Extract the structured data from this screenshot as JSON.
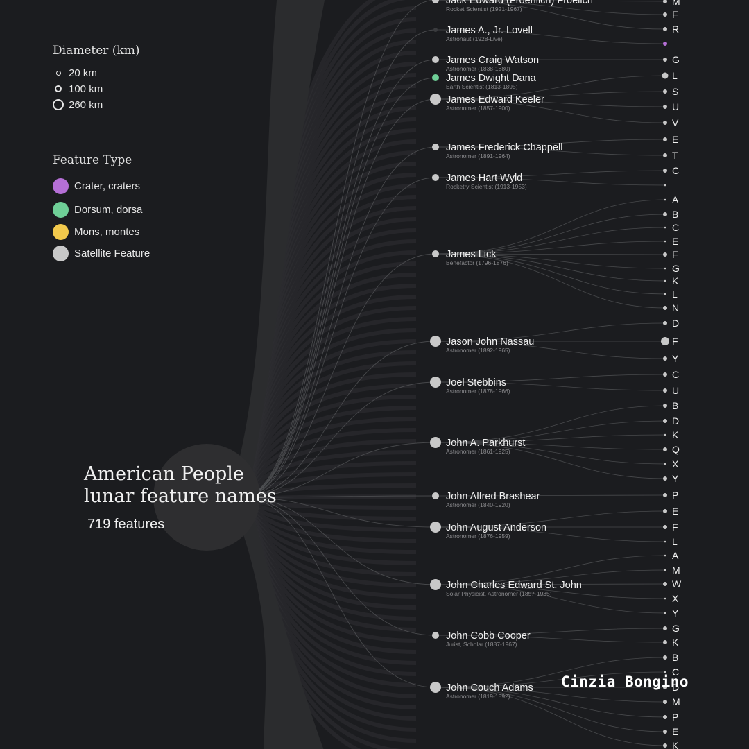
{
  "legend": {
    "diameter_title": "Diameter (km)",
    "diameter_items": [
      {
        "label": "20 km",
        "km": 20
      },
      {
        "label": "100 km",
        "km": 100
      },
      {
        "label": "260 km",
        "km": 260
      }
    ],
    "type_title": "Feature Type",
    "type_items": [
      {
        "label": "Crater, craters",
        "color": "#b56fd6"
      },
      {
        "label": "Dorsum, dorsa",
        "color": "#6fcf97"
      },
      {
        "label": "Mons, montes",
        "color": "#f2c94c"
      },
      {
        "label": "Satellite Feature",
        "color": "#c8c8c8"
      }
    ]
  },
  "center": {
    "title_line1": "American People",
    "title_line2": "lunar feature names",
    "count": "719 features"
  },
  "people": [
    {
      "name": "Jack Edward (Froehlich) Froelich",
      "role": "Rocket Scientist (1921-1967)",
      "type": "Satellite Feature",
      "node": "medium"
    },
    {
      "name": "James A., Jr. Lovell",
      "role": "Astronaut (1928-Live)",
      "type": "Satellite Feature",
      "node": "none"
    },
    {
      "name": "James Craig Watson",
      "role": "Astronomer (1838-1880)",
      "type": "Satellite Feature",
      "node": "medium"
    },
    {
      "name": "James Dwight Dana",
      "role": "Earth Scientist (1813-1895)",
      "type": "Dorsum, dorsa",
      "node": "medium"
    },
    {
      "name": "James Edward Keeler",
      "role": "Astronomer (1857-1900)",
      "type": "Satellite Feature",
      "node": "large"
    },
    {
      "name": "James Frederick Chappell",
      "role": "Astronomer (1891-1964)",
      "type": "Satellite Feature",
      "node": "medium"
    },
    {
      "name": "James Hart Wyld",
      "role": "Rocketry Scientist (1913-1953)",
      "type": "Satellite Feature",
      "node": "medium"
    },
    {
      "name": "James Lick",
      "role": "Benefactor (1796-1876)",
      "type": "Satellite Feature",
      "node": "medium"
    },
    {
      "name": "Jason John Nassau",
      "role": "Astronomer (1892-1965)",
      "type": "Satellite Feature",
      "node": "large"
    },
    {
      "name": "Joel Stebbins",
      "role": "Astronomer (1878-1966)",
      "type": "Satellite Feature",
      "node": "large"
    },
    {
      "name": "John A. Parkhurst",
      "role": "Astronomer (1861-1925)",
      "type": "Satellite Feature",
      "node": "large"
    },
    {
      "name": "John Alfred Brashear",
      "role": "Astronomer (1840-1920)",
      "type": "Satellite Feature",
      "node": "medium"
    },
    {
      "name": "John August Anderson",
      "role": "Astronomer (1876-1959)",
      "type": "Satellite Feature",
      "node": "large"
    },
    {
      "name": "John Charles Edward St. John",
      "role": "Solar Physicist, Astronomer (1857-1935)",
      "type": "Satellite Feature",
      "node": "large"
    },
    {
      "name": "John Cobb Cooper",
      "role": "Jurist, Scholar (1887-1967)",
      "type": "Satellite Feature",
      "node": "medium"
    },
    {
      "name": "John Couch Adams",
      "role": "Astronomer (1819-1892)",
      "type": "Satellite Feature",
      "node": "large"
    }
  ],
  "features": [
    {
      "letter": "M",
      "type": "Satellite Feature",
      "size": "small",
      "parent": 0
    },
    {
      "letter": "F",
      "type": "Satellite Feature",
      "size": "small",
      "parent": 0
    },
    {
      "letter": "R",
      "type": "Satellite Feature",
      "size": "small",
      "parent": 0
    },
    {
      "letter": "",
      "type": "Crater, craters",
      "size": "small",
      "parent": 1
    },
    {
      "letter": "G",
      "type": "Satellite Feature",
      "size": "small",
      "parent": 2
    },
    {
      "letter": "L",
      "type": "Satellite Feature",
      "size": "medium",
      "parent": 4
    },
    {
      "letter": "S",
      "type": "Satellite Feature",
      "size": "small",
      "parent": 4
    },
    {
      "letter": "U",
      "type": "Satellite Feature",
      "size": "small",
      "parent": 4
    },
    {
      "letter": "V",
      "type": "Satellite Feature",
      "size": "small",
      "parent": 4
    },
    {
      "letter": "E",
      "type": "Satellite Feature",
      "size": "small",
      "parent": 5
    },
    {
      "letter": "T",
      "type": "Satellite Feature",
      "size": "small",
      "parent": 5
    },
    {
      "letter": "C",
      "type": "Satellite Feature",
      "size": "small",
      "parent": 6
    },
    {
      "letter": "",
      "type": "Satellite Feature",
      "size": "tiny",
      "parent": 6
    },
    {
      "letter": "A",
      "type": "Satellite Feature",
      "size": "tiny",
      "parent": 7
    },
    {
      "letter": "B",
      "type": "Satellite Feature",
      "size": "small",
      "parent": 7
    },
    {
      "letter": "C",
      "type": "Satellite Feature",
      "size": "tiny",
      "parent": 7
    },
    {
      "letter": "E",
      "type": "Satellite Feature",
      "size": "tiny",
      "parent": 7
    },
    {
      "letter": "F",
      "type": "Satellite Feature",
      "size": "small",
      "parent": 7
    },
    {
      "letter": "G",
      "type": "Satellite Feature",
      "size": "tiny",
      "parent": 7
    },
    {
      "letter": "K",
      "type": "Satellite Feature",
      "size": "tiny",
      "parent": 7
    },
    {
      "letter": "L",
      "type": "Satellite Feature",
      "size": "tiny",
      "parent": 7
    },
    {
      "letter": "N",
      "type": "Satellite Feature",
      "size": "small",
      "parent": 7
    },
    {
      "letter": "D",
      "type": "Satellite Feature",
      "size": "small",
      "parent": 8
    },
    {
      "letter": "F",
      "type": "Satellite Feature",
      "size": "large",
      "parent": 8
    },
    {
      "letter": "Y",
      "type": "Satellite Feature",
      "size": "small",
      "parent": 8
    },
    {
      "letter": "C",
      "type": "Satellite Feature",
      "size": "small",
      "parent": 9
    },
    {
      "letter": "U",
      "type": "Satellite Feature",
      "size": "small",
      "parent": 9
    },
    {
      "letter": "B",
      "type": "Satellite Feature",
      "size": "small",
      "parent": 10
    },
    {
      "letter": "D",
      "type": "Satellite Feature",
      "size": "small",
      "parent": 10
    },
    {
      "letter": "K",
      "type": "Satellite Feature",
      "size": "tiny",
      "parent": 10
    },
    {
      "letter": "Q",
      "type": "Satellite Feature",
      "size": "small",
      "parent": 10
    },
    {
      "letter": "X",
      "type": "Satellite Feature",
      "size": "tiny",
      "parent": 10
    },
    {
      "letter": "Y",
      "type": "Satellite Feature",
      "size": "small",
      "parent": 10
    },
    {
      "letter": "P",
      "type": "Satellite Feature",
      "size": "small",
      "parent": 11
    },
    {
      "letter": "E",
      "type": "Satellite Feature",
      "size": "small",
      "parent": 12
    },
    {
      "letter": "F",
      "type": "Satellite Feature",
      "size": "small",
      "parent": 12
    },
    {
      "letter": "L",
      "type": "Satellite Feature",
      "size": "tiny",
      "parent": 12
    },
    {
      "letter": "A",
      "type": "Satellite Feature",
      "size": "tiny",
      "parent": 13
    },
    {
      "letter": "M",
      "type": "Satellite Feature",
      "size": "tiny",
      "parent": 13
    },
    {
      "letter": "W",
      "type": "Satellite Feature",
      "size": "small",
      "parent": 13
    },
    {
      "letter": "X",
      "type": "Satellite Feature",
      "size": "tiny",
      "parent": 13
    },
    {
      "letter": "Y",
      "type": "Satellite Feature",
      "size": "tiny",
      "parent": 13
    },
    {
      "letter": "G",
      "type": "Satellite Feature",
      "size": "small",
      "parent": 14
    },
    {
      "letter": "K",
      "type": "Satellite Feature",
      "size": "small",
      "parent": 14
    },
    {
      "letter": "B",
      "type": "Satellite Feature",
      "size": "small",
      "parent": 15
    },
    {
      "letter": "C",
      "type": "Satellite Feature",
      "size": "tiny",
      "parent": 15
    },
    {
      "letter": "D",
      "type": "Satellite Feature",
      "size": "small",
      "parent": 15
    },
    {
      "letter": "M",
      "type": "Satellite Feature",
      "size": "small",
      "parent": 15
    },
    {
      "letter": "P",
      "type": "Satellite Feature",
      "size": "small",
      "parent": 15
    },
    {
      "letter": "E",
      "type": "Satellite Feature",
      "size": "small",
      "parent": 15
    },
    {
      "letter": "K",
      "type": "Satellite Feature",
      "size": "small",
      "parent": 15
    }
  ],
  "signature": "Cinzia Bongino"
}
